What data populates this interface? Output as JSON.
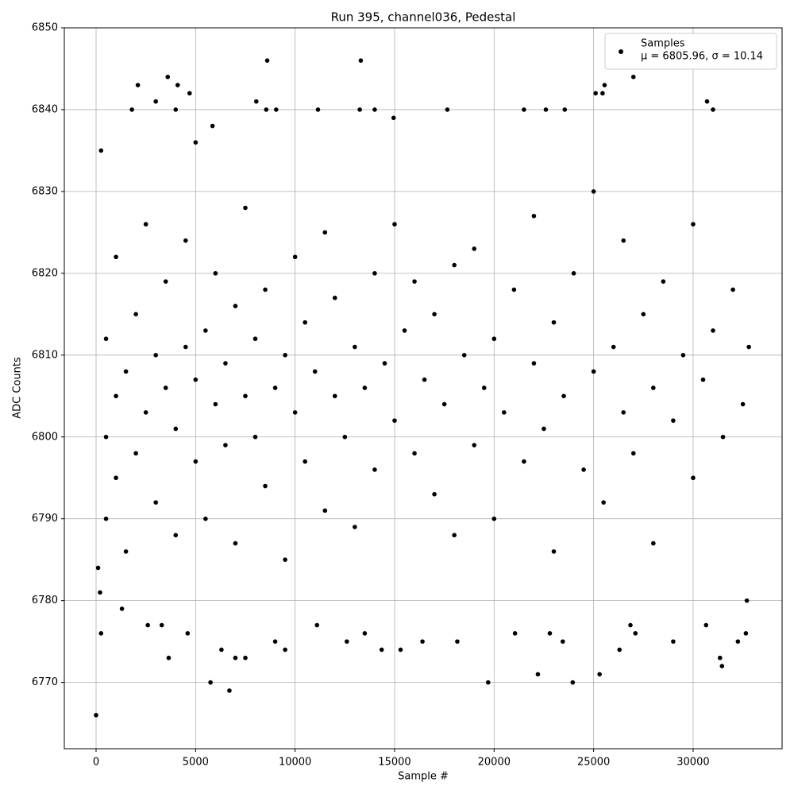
{
  "chart_data": {
    "type": "scatter",
    "title": "Run 395, channel036, Pedestal",
    "x_label": "Sample #",
    "y_label": "ADC Counts",
    "legend_position": "upper right",
    "legend_note": "μ = 6805.96, σ = 10.14",
    "grid": true,
    "xlim": [
      -1596,
      34470
    ],
    "ylim": [
      6761.9,
      6850
    ],
    "xticks": [
      0,
      5000,
      10000,
      15000,
      20000,
      25000,
      30000
    ],
    "yticks": [
      6770,
      6780,
      6790,
      6800,
      6810,
      6820,
      6830,
      6840,
      6850
    ],
    "series": [
      {
        "name": "Samples",
        "color": "#000000",
        "x": [
          0,
          100,
          200,
          250,
          250,
          1300,
          1800,
          2100,
          2600,
          3000,
          3300,
          3600,
          3650,
          4100,
          4000,
          4600,
          4700,
          5000,
          5750,
          5850,
          6300,
          6700,
          7000,
          7500,
          8050,
          8600,
          8550,
          9050,
          9500,
          9000,
          11150,
          11100,
          12600,
          13300,
          13250,
          13500,
          14000,
          14350,
          14950,
          15300,
          16400,
          17650,
          18150,
          19700,
          21050,
          21500,
          22200,
          22600,
          22800,
          23450,
          23550,
          23950,
          25100,
          25300,
          25450,
          25550,
          26300,
          27000,
          26850,
          27100,
          29000,
          30650,
          30700,
          31000,
          31350,
          31450,
          32250,
          32650,
          32700,
          500,
          500,
          500,
          1000,
          1000,
          1000,
          1500,
          1500,
          2000,
          2000,
          2500,
          2500,
          3000,
          3000,
          3500,
          3500,
          4000,
          4000,
          4500,
          4500,
          5000,
          5000,
          5500,
          5500,
          6000,
          6000,
          6500,
          6500,
          7000,
          7000,
          7500,
          7500,
          8000,
          8000,
          8500,
          8500,
          9000,
          9500,
          9500,
          10000,
          10000,
          10500,
          10500,
          11000,
          11500,
          11500,
          12000,
          12000,
          12500,
          13000,
          13000,
          13500,
          14000,
          14000,
          14500,
          15000,
          15000,
          15500,
          16000,
          16000,
          16500,
          17000,
          17000,
          17500,
          18000,
          18000,
          18500,
          19000,
          19000,
          19500,
          20000,
          20000,
          20500,
          21000,
          21500,
          22000,
          22000,
          22500,
          23000,
          23000,
          23500,
          24000,
          24500,
          25000,
          25000,
          25500,
          26000,
          26500,
          26500,
          27000,
          27500,
          28000,
          28000,
          28500,
          29000,
          29500,
          30000,
          30000,
          30500,
          31000,
          31500,
          32000,
          32500,
          32800
        ],
        "values": [
          6766,
          6784,
          6781,
          6776,
          6835,
          6779,
          6840,
          6843,
          6777,
          6841,
          6777,
          6844,
          6773,
          6843,
          6840,
          6776,
          6842,
          6836,
          6770,
          6838,
          6774,
          6769,
          6773,
          6773,
          6841,
          6846,
          6840,
          6840,
          6774,
          6775,
          6840,
          6777,
          6775,
          6846,
          6840,
          6776,
          6840,
          6774,
          6839,
          6774,
          6775,
          6840,
          6775,
          6770,
          6776,
          6840,
          6771,
          6840,
          6776,
          6775,
          6840,
          6770,
          6842,
          6771,
          6842,
          6843,
          6774,
          6844,
          6777,
          6776,
          6775,
          6777,
          6841,
          6840,
          6773,
          6772,
          6775,
          6776,
          6780,
          6800,
          6812,
          6790,
          6805,
          6822,
          6795,
          6808,
          6786,
          6815,
          6798,
          6803,
          6826,
          6810,
          6792,
          6806,
          6819,
          6801,
          6788,
          6811,
          6824,
          6797,
          6807,
          6813,
          6790,
          6804,
          6820,
          6799,
          6809,
          6816,
          6787,
          6805,
          6828,
          6800,
          6812,
          6794,
          6818,
          6806,
          6810,
          6785,
          6803,
          6822,
          6797,
          6814,
          6808,
          6791,
          6825,
          6805,
          6817,
          6800,
          6811,
          6789,
          6806,
          6820,
          6796,
          6809,
          6802,
          6826,
          6813,
          6798,
          6819,
          6807,
          6793,
          6815,
          6804,
          6821,
          6788,
          6810,
          6799,
          6823,
          6806,
          6812,
          6790,
          6803,
          6818,
          6797,
          6809,
          6827,
          6801,
          6814,
          6786,
          6805,
          6820,
          6796,
          6808,
          6830,
          6792,
          6811,
          6803,
          6824,
          6798,
          6815,
          6806,
          6787,
          6819,
          6802,
          6810,
          6795,
          6826,
          6807,
          6813,
          6800,
          6818,
          6804,
          6811
        ]
      }
    ]
  }
}
